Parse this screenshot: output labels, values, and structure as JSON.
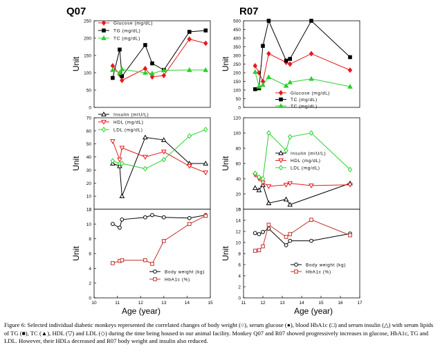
{
  "caption": "Figure 6: Selected individual diabetic monkeys represented the correlated changes of body weight (○), serum glucose (●), blood HbA1c (□) and serum insulin (△) with serum lipids of TG (■), TC (▲), HDL (▽) and LDL (◇) during the time being housed in our animal facility. Monkey Q07 and R07 showed progressively increases in glucose, HbA1c, TG and LDL. However, their HDLs decreased and R07 body weight and insulin also reduced.",
  "colors": {
    "red": "#e8191f",
    "black": "#000000",
    "green": "#2bd12b",
    "brown": "#c03028"
  },
  "chart_data": [
    {
      "type": "line",
      "monkey": "Q07",
      "title": "Q07",
      "ylabel": "Unit",
      "ylim": [
        0,
        250
      ],
      "yticks": [
        "0",
        "50",
        "100",
        "150",
        "200",
        "250"
      ],
      "x": [
        10.8,
        11.1,
        11.2,
        12.2,
        12.5,
        13.0,
        14.1,
        14.8
      ],
      "series": [
        {
          "name": "Glucose (mg/dL)",
          "color": "red",
          "marker": "diamond-filled",
          "values": [
            120,
            95,
            78,
            112,
            88,
            92,
            197,
            185
          ]
        },
        {
          "name": "TG (mg/dL)",
          "color": "black",
          "marker": "square-filled",
          "values": [
            85,
            167,
            90,
            180,
            127,
            108,
            218,
            222
          ]
        },
        {
          "name": "TC (mg/dL)",
          "color": "green",
          "marker": "triangle-filled",
          "values": [
            108,
            100,
            110,
            100,
            98,
            107,
            108,
            108
          ]
        }
      ]
    },
    {
      "type": "line",
      "monkey": "R07",
      "title": "R07",
      "ylabel": "Unit",
      "ylim": [
        0,
        500
      ],
      "yticks": [
        "0",
        "50",
        "100",
        "150",
        "200",
        "250",
        "300",
        "350",
        "400",
        "450",
        "500"
      ],
      "x": [
        11.6,
        11.8,
        12.0,
        12.3,
        13.2,
        13.4,
        14.5,
        16.5
      ],
      "series": [
        {
          "name": "Glucose (mg/dL)",
          "color": "red",
          "marker": "diamond-filled",
          "values": [
            240,
            200,
            150,
            310,
            260,
            250,
            310,
            215
          ]
        },
        {
          "name": "TC (mg/dL)",
          "color": "black",
          "marker": "square-filled",
          "values": [
            105,
            110,
            355,
            500,
            270,
            280,
            500,
            290
          ]
        },
        {
          "name": "TC (mg/dL)",
          "color": "green",
          "marker": "triangle-filled",
          "values": [
            205,
            120,
            130,
            175,
            125,
            145,
            165,
            120
          ]
        }
      ]
    },
    {
      "type": "line",
      "monkey": "Q07",
      "ylabel": "Unit",
      "ylim": [
        0,
        70
      ],
      "yticks": [
        "0",
        "10",
        "20",
        "30",
        "40",
        "50",
        "60",
        "70"
      ],
      "x": [
        10.8,
        11.1,
        11.2,
        12.2,
        13.0,
        14.1,
        14.8
      ],
      "series": [
        {
          "name": "Insulin (mIU/L)",
          "color": "black",
          "marker": "triangle-open",
          "values": [
            35,
            33,
            10,
            55,
            53,
            35,
            35
          ]
        },
        {
          "name": "HDL (mg/dL)",
          "color": "red",
          "marker": "triangle-down-open",
          "values": [
            52,
            38,
            47,
            40,
            44,
            33,
            28
          ]
        },
        {
          "name": "LDL (mg/dL)",
          "color": "green",
          "marker": "diamond-open",
          "values": [
            37,
            35,
            35,
            31,
            38,
            56,
            61
          ]
        }
      ]
    },
    {
      "type": "line",
      "monkey": "R07",
      "ylabel": "Unit",
      "ylim": [
        0,
        120
      ],
      "yticks": [
        "0",
        "20",
        "40",
        "60",
        "80",
        "100",
        "120"
      ],
      "x": [
        11.6,
        11.8,
        12.0,
        12.3,
        13.2,
        13.4,
        14.5,
        16.5
      ],
      "series": [
        {
          "name": "Insulin (mIU/L)",
          "color": "black",
          "marker": "triangle-open",
          "values": [
            28,
            25,
            32,
            8,
            13,
            6,
            null,
            34
          ]
        },
        {
          "name": "HDL (mg/dL)",
          "color": "red",
          "marker": "triangle-down-open",
          "values": [
            45,
            40,
            35,
            30,
            32,
            34,
            31,
            32
          ]
        },
        {
          "name": "LDL (mg/dL)",
          "color": "green",
          "marker": "diamond-open",
          "values": [
            47,
            42,
            40,
            100,
            77,
            95,
            100,
            52
          ]
        }
      ]
    },
    {
      "type": "line",
      "monkey": "Q07",
      "ylabel": "Unit",
      "xlabel": "Age (year)",
      "ylim": [
        0,
        12
      ],
      "yticks": [
        "0",
        "2",
        "4",
        "6",
        "8",
        "10",
        "12"
      ],
      "xlim": [
        10,
        15
      ],
      "xticks": [
        "10",
        "11",
        "12",
        "13",
        "14",
        "15"
      ],
      "x": [
        10.8,
        11.1,
        11.2,
        12.2,
        12.5,
        13.0,
        14.1,
        14.8
      ],
      "series": [
        {
          "name": "Body weight (kg)",
          "color": "black",
          "marker": "circle-open",
          "values": [
            10.0,
            9.5,
            10.6,
            10.9,
            11.2,
            10.9,
            10.8,
            11.2
          ]
        },
        {
          "name": "HbA1c (%)",
          "color": "brown",
          "marker": "square-open",
          "values": [
            4.7,
            5.0,
            5.1,
            5.1,
            4.6,
            7.7,
            10.0,
            11.1
          ]
        }
      ]
    },
    {
      "type": "line",
      "monkey": "R07",
      "ylabel": "Unit",
      "xlabel": "Age (year)",
      "ylim": [
        0,
        16
      ],
      "yticks": [
        "0",
        "2",
        "4",
        "6",
        "8",
        "10",
        "12",
        "14",
        "16"
      ],
      "xlim": [
        11,
        17
      ],
      "xticks": [
        "11",
        "12",
        "13",
        "14",
        "15",
        "16",
        "17"
      ],
      "x": [
        11.6,
        11.8,
        12.0,
        12.3,
        13.2,
        13.4,
        14.5,
        16.5
      ],
      "series": [
        {
          "name": "Body weight (kg)",
          "color": "black",
          "marker": "circle-open",
          "values": [
            11.7,
            11.5,
            11.9,
            12.5,
            9.5,
            10.3,
            10.3,
            11.6
          ]
        },
        {
          "name": "HbA1c (%)",
          "color": "brown",
          "marker": "square-open",
          "values": [
            8.5,
            8.6,
            9.3,
            13.2,
            11.0,
            11.5,
            14.1,
            11.3
          ]
        }
      ]
    }
  ]
}
